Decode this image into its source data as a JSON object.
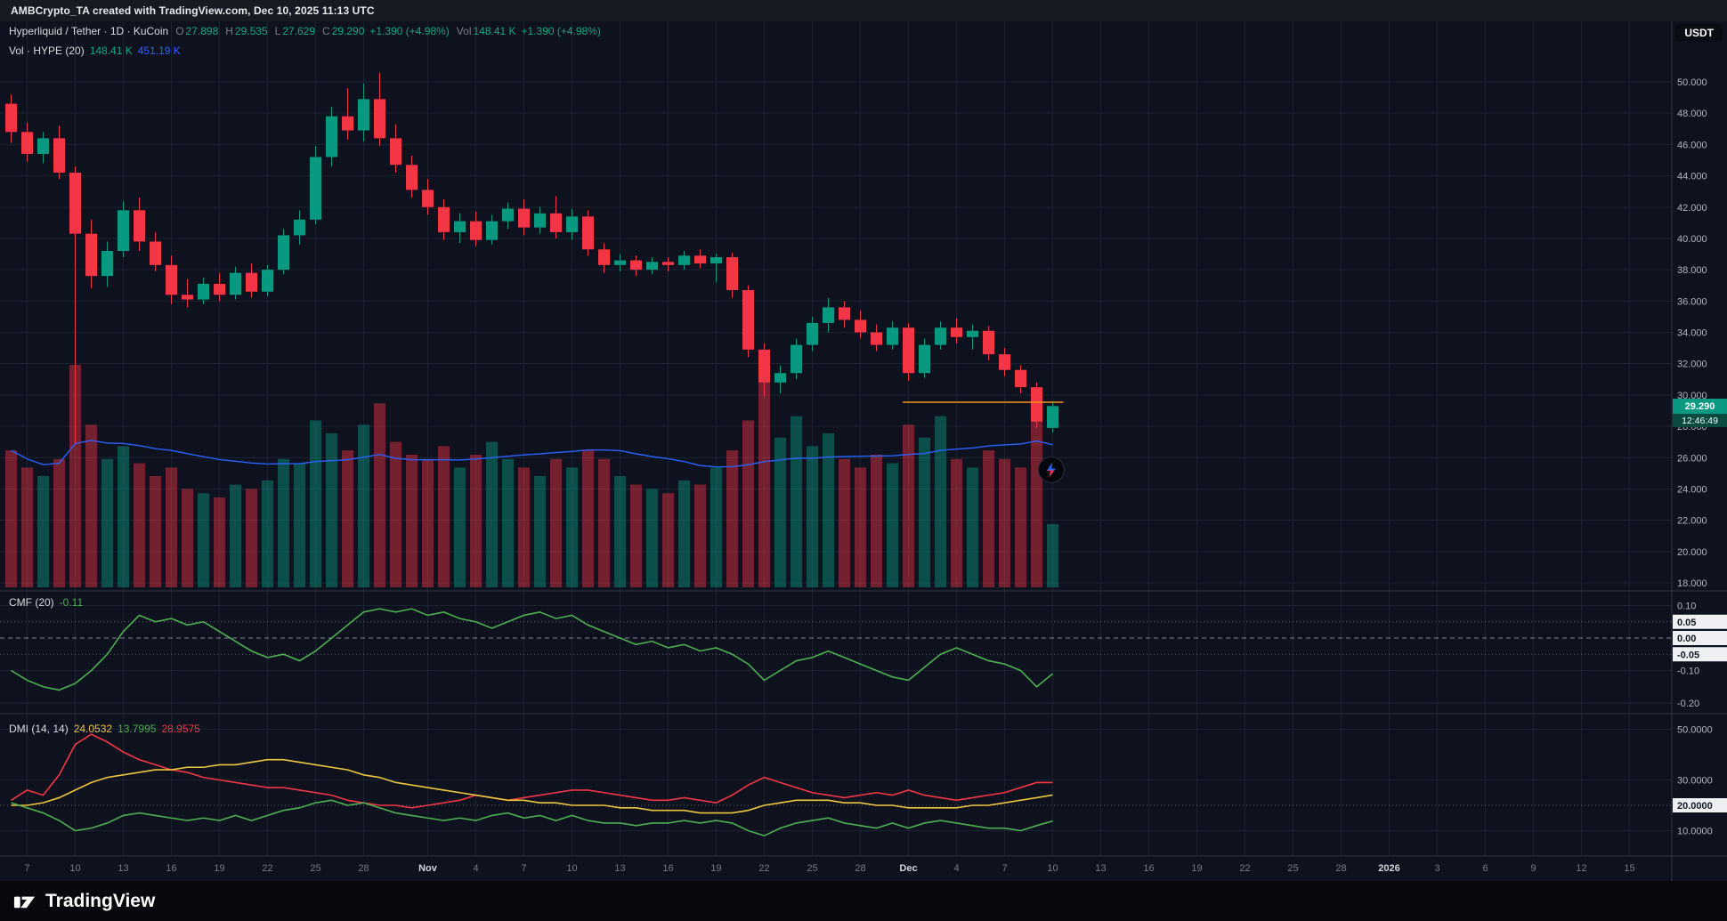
{
  "meta": {
    "attribution": "AMBCrypto_TA created with TradingView.com, Dec 10, 2025 11:13 UTC"
  },
  "header": {
    "symbol": {
      "title": "Hyperliquid / Tether · 1D · KuCoin",
      "o_label": "O",
      "o": "27.898",
      "h_label": "H",
      "h": "29.535",
      "l_label": "L",
      "l": "27.629",
      "c_label": "C",
      "c": "29.290",
      "change": "+1.390 (+4.98%)",
      "vol_label": "Vol",
      "vol": "148.41 K",
      "vol_change": "+1.390 (+4.98%)"
    },
    "indicator_vol": {
      "label": "Vol · HYPE (20)",
      "value": "148.41 K",
      "ma": "451.19 K"
    },
    "currency_badge": "USDT"
  },
  "price_scale": {
    "current": {
      "label": "29.290",
      "countdown": "12:46:49"
    }
  },
  "panes": {
    "cmf": {
      "label": "CMF (20)",
      "value": "-0.11"
    },
    "dmi": {
      "label": "DMI (14, 14)",
      "adx": "24.0532",
      "plus": "13.7995",
      "minus": "28.9575"
    }
  },
  "axes": {
    "price": {
      "ticks": [
        {
          "label": "50.000",
          "v": 50
        },
        {
          "label": "48.000",
          "v": 48
        },
        {
          "label": "46.000",
          "v": 46
        },
        {
          "label": "44.000",
          "v": 44
        },
        {
          "label": "42.000",
          "v": 42
        },
        {
          "label": "40.000",
          "v": 40
        },
        {
          "label": "38.000",
          "v": 38
        },
        {
          "label": "36.000",
          "v": 36
        },
        {
          "label": "34.000",
          "v": 34
        },
        {
          "label": "32.000",
          "v": 32
        },
        {
          "label": "30.000",
          "v": 30
        },
        {
          "label": "28.000",
          "v": 28
        },
        {
          "label": "26.000",
          "v": 26
        },
        {
          "label": "24.000",
          "v": 24
        },
        {
          "label": "22.000",
          "v": 22
        },
        {
          "label": "20.000",
          "v": 20
        },
        {
          "label": "18.000",
          "v": 18
        }
      ]
    },
    "cmf": {
      "ticks": [
        {
          "label": "0.10",
          "v": 0.1,
          "badge": false
        },
        {
          "label": "0.05",
          "v": 0.05,
          "badge": true
        },
        {
          "label": "0.00",
          "v": 0.0,
          "badge": true
        },
        {
          "label": "-0.05",
          "v": -0.05,
          "badge": true
        },
        {
          "label": "-0.10",
          "v": -0.1,
          "badge": false
        },
        {
          "label": "-0.20",
          "v": -0.2,
          "badge": false
        }
      ]
    },
    "dmi": {
      "ticks": [
        {
          "label": "50.0000",
          "v": 50,
          "badge": false
        },
        {
          "label": "30.0000",
          "v": 30,
          "badge": false
        },
        {
          "label": "20.0000",
          "v": 20,
          "badge": true
        },
        {
          "label": "10.0000",
          "v": 10,
          "badge": false
        }
      ]
    },
    "time": {
      "labels": [
        {
          "t": "7",
          "i": 1
        },
        {
          "t": "10",
          "i": 4
        },
        {
          "t": "13",
          "i": 7
        },
        {
          "t": "16",
          "i": 10
        },
        {
          "t": "19",
          "i": 13
        },
        {
          "t": "22",
          "i": 16
        },
        {
          "t": "25",
          "i": 19
        },
        {
          "t": "28",
          "i": 22
        },
        {
          "t": "Nov",
          "i": 26,
          "major": true
        },
        {
          "t": "4",
          "i": 29
        },
        {
          "t": "7",
          "i": 32
        },
        {
          "t": "10",
          "i": 35
        },
        {
          "t": "13",
          "i": 38
        },
        {
          "t": "16",
          "i": 41
        },
        {
          "t": "19",
          "i": 44
        },
        {
          "t": "22",
          "i": 47
        },
        {
          "t": "25",
          "i": 50
        },
        {
          "t": "28",
          "i": 53
        },
        {
          "t": "Dec",
          "i": 56,
          "major": true
        },
        {
          "t": "4",
          "i": 59
        },
        {
          "t": "7",
          "i": 62
        },
        {
          "t": "10",
          "i": 65
        },
        {
          "t": "13",
          "i": 68
        },
        {
          "t": "16",
          "i": 71
        },
        {
          "t": "19",
          "i": 74
        },
        {
          "t": "22",
          "i": 77
        },
        {
          "t": "25",
          "i": 80
        },
        {
          "t": "28",
          "i": 83
        },
        {
          "t": "2026",
          "i": 86,
          "major": true
        },
        {
          "t": "3",
          "i": 89
        },
        {
          "t": "6",
          "i": 92
        },
        {
          "t": "9",
          "i": 95
        },
        {
          "t": "12",
          "i": 98
        },
        {
          "t": "15",
          "i": 101
        }
      ]
    }
  },
  "footer": {
    "brand": "TradingView"
  },
  "colors": {
    "bg": "#0e121e",
    "up": "#089981",
    "down": "#f23645",
    "vol_up": "rgba(8,153,129,0.45)",
    "vol_down": "rgba(242,54,69,0.45)",
    "vol_ma": "#2962ff",
    "cmf_line": "#4caf50",
    "adx": "#edc53f",
    "plus_di": "#4caf50",
    "minus_di": "#f23645",
    "price_line": "#f7931a",
    "grid": "#1b2231",
    "separator": "#2f3442",
    "axis_text": "#b2b5be",
    "dim_text": "#787b86",
    "badge_bg": "#eef0f3",
    "last_price_bg": "#089981"
  },
  "chart_data": {
    "type": "candlestick",
    "title": "Hyperliquid / Tether 1D KuCoin",
    "price_range": [
      18,
      50
    ],
    "cmf_range": [
      -0.22,
      0.12
    ],
    "dmi_range": [
      0,
      50
    ],
    "dates": [
      "Oct 6",
      "Oct 7",
      "Oct 8",
      "Oct 9",
      "Oct 10",
      "Oct 11",
      "Oct 12",
      "Oct 13",
      "Oct 14",
      "Oct 15",
      "Oct 16",
      "Oct 17",
      "Oct 18",
      "Oct 19",
      "Oct 20",
      "Oct 21",
      "Oct 22",
      "Oct 23",
      "Oct 24",
      "Oct 25",
      "Oct 26",
      "Oct 27",
      "Oct 28",
      "Oct 29",
      "Oct 30",
      "Oct 31",
      "Nov 1",
      "Nov 2",
      "Nov 3",
      "Nov 4",
      "Nov 5",
      "Nov 6",
      "Nov 7",
      "Nov 8",
      "Nov 9",
      "Nov 10",
      "Nov 11",
      "Nov 12",
      "Nov 13",
      "Nov 14",
      "Nov 15",
      "Nov 16",
      "Nov 17",
      "Nov 18",
      "Nov 19",
      "Nov 20",
      "Nov 21",
      "Nov 22",
      "Nov 23",
      "Nov 24",
      "Nov 25",
      "Nov 26",
      "Nov 27",
      "Nov 28",
      "Nov 29",
      "Nov 30",
      "Dec 1",
      "Dec 2",
      "Dec 3",
      "Dec 4",
      "Dec 5",
      "Dec 6",
      "Dec 7",
      "Dec 8",
      "Dec 9",
      "Dec 10"
    ],
    "candles": [
      [
        48.6,
        49.2,
        46.1,
        46.8
      ],
      [
        46.8,
        47.4,
        44.9,
        45.4
      ],
      [
        45.4,
        46.8,
        44.8,
        46.4
      ],
      [
        46.4,
        47.2,
        43.8,
        44.2
      ],
      [
        44.2,
        44.6,
        26.9,
        40.3
      ],
      [
        40.3,
        41.2,
        36.8,
        37.6
      ],
      [
        37.6,
        39.8,
        36.9,
        39.2
      ],
      [
        39.2,
        42.4,
        38.8,
        41.8
      ],
      [
        41.8,
        42.6,
        39.2,
        39.8
      ],
      [
        39.8,
        40.4,
        37.9,
        38.3
      ],
      [
        38.3,
        38.9,
        35.8,
        36.4
      ],
      [
        36.4,
        37.4,
        35.6,
        36.1
      ],
      [
        36.1,
        37.5,
        35.8,
        37.1
      ],
      [
        37.1,
        37.8,
        36.0,
        36.4
      ],
      [
        36.4,
        38.2,
        36.1,
        37.8
      ],
      [
        37.8,
        38.4,
        36.2,
        36.6
      ],
      [
        36.6,
        38.3,
        36.3,
        38.0
      ],
      [
        38.0,
        40.6,
        37.7,
        40.2
      ],
      [
        40.2,
        41.8,
        39.6,
        41.2
      ],
      [
        41.2,
        45.9,
        40.9,
        45.2
      ],
      [
        45.2,
        48.4,
        44.6,
        47.8
      ],
      [
        47.8,
        49.6,
        46.3,
        46.9
      ],
      [
        46.9,
        49.9,
        46.2,
        48.9
      ],
      [
        48.9,
        50.6,
        45.9,
        46.4
      ],
      [
        46.4,
        47.3,
        44.2,
        44.7
      ],
      [
        44.7,
        45.3,
        42.6,
        43.1
      ],
      [
        43.1,
        43.8,
        41.5,
        42.0
      ],
      [
        42.0,
        42.5,
        39.9,
        40.4
      ],
      [
        40.4,
        41.6,
        39.7,
        41.1
      ],
      [
        41.1,
        41.7,
        39.5,
        39.9
      ],
      [
        39.9,
        41.5,
        39.6,
        41.1
      ],
      [
        41.1,
        42.3,
        40.6,
        41.9
      ],
      [
        41.9,
        42.5,
        40.2,
        40.7
      ],
      [
        40.7,
        42.0,
        40.3,
        41.6
      ],
      [
        41.6,
        42.7,
        40.0,
        40.4
      ],
      [
        40.4,
        41.9,
        39.9,
        41.4
      ],
      [
        41.4,
        41.8,
        38.9,
        39.3
      ],
      [
        39.3,
        39.7,
        37.8,
        38.3
      ],
      [
        38.3,
        39.0,
        37.9,
        38.6
      ],
      [
        38.6,
        38.9,
        37.6,
        38.0
      ],
      [
        38.0,
        38.8,
        37.7,
        38.5
      ],
      [
        38.5,
        38.8,
        37.9,
        38.3
      ],
      [
        38.3,
        39.2,
        38.0,
        38.9
      ],
      [
        38.9,
        39.3,
        38.1,
        38.4
      ],
      [
        38.4,
        39.0,
        37.2,
        38.8
      ],
      [
        38.8,
        39.1,
        36.2,
        36.7
      ],
      [
        36.7,
        37.0,
        32.4,
        32.9
      ],
      [
        32.9,
        33.3,
        29.9,
        30.8
      ],
      [
        30.8,
        31.9,
        30.1,
        31.4
      ],
      [
        31.4,
        33.6,
        31.0,
        33.2
      ],
      [
        33.2,
        35.0,
        32.8,
        34.6
      ],
      [
        34.6,
        36.2,
        34.0,
        35.6
      ],
      [
        35.6,
        36.0,
        34.3,
        34.8
      ],
      [
        34.8,
        35.4,
        33.6,
        34.0
      ],
      [
        34.0,
        34.5,
        32.8,
        33.2
      ],
      [
        33.2,
        34.7,
        32.9,
        34.3
      ],
      [
        34.3,
        34.6,
        30.9,
        31.4
      ],
      [
        31.4,
        33.6,
        31.1,
        33.2
      ],
      [
        33.2,
        34.7,
        32.9,
        34.3
      ],
      [
        34.3,
        34.9,
        33.3,
        33.7
      ],
      [
        33.7,
        34.5,
        32.9,
        34.1
      ],
      [
        34.1,
        34.4,
        32.2,
        32.6
      ],
      [
        32.6,
        33.0,
        31.2,
        31.6
      ],
      [
        31.6,
        31.9,
        30.1,
        30.5
      ],
      [
        30.5,
        30.8,
        27.9,
        28.3
      ],
      [
        27.898,
        29.535,
        27.629,
        29.29
      ]
    ],
    "volumes": [
      320,
      280,
      260,
      300,
      520,
      380,
      300,
      330,
      290,
      260,
      280,
      230,
      220,
      210,
      240,
      230,
      250,
      300,
      290,
      390,
      360,
      320,
      380,
      430,
      340,
      310,
      300,
      330,
      280,
      310,
      340,
      300,
      280,
      260,
      300,
      280,
      320,
      300,
      260,
      240,
      230,
      220,
      250,
      240,
      280,
      320,
      390,
      480,
      350,
      400,
      330,
      360,
      300,
      280,
      310,
      290,
      380,
      350,
      400,
      300,
      280,
      320,
      300,
      280,
      420,
      148
    ],
    "cmf": [
      -0.1,
      -0.13,
      -0.15,
      -0.16,
      -0.14,
      -0.1,
      -0.05,
      0.02,
      0.07,
      0.05,
      0.06,
      0.04,
      0.05,
      0.02,
      -0.01,
      -0.04,
      -0.06,
      -0.05,
      -0.07,
      -0.04,
      0.0,
      0.04,
      0.08,
      0.09,
      0.08,
      0.09,
      0.07,
      0.08,
      0.06,
      0.05,
      0.03,
      0.05,
      0.07,
      0.08,
      0.06,
      0.07,
      0.04,
      0.02,
      0.0,
      -0.02,
      -0.01,
      -0.03,
      -0.02,
      -0.04,
      -0.03,
      -0.05,
      -0.08,
      -0.13,
      -0.1,
      -0.07,
      -0.06,
      -0.04,
      -0.06,
      -0.08,
      -0.1,
      -0.12,
      -0.13,
      -0.09,
      -0.05,
      -0.03,
      -0.05,
      -0.07,
      -0.08,
      -0.1,
      -0.15,
      -0.11
    ],
    "dmi": {
      "adx": [
        20,
        20,
        21,
        23,
        26,
        29,
        31,
        32,
        33,
        34,
        34,
        35,
        35,
        36,
        36,
        37,
        38,
        38,
        37,
        36,
        35,
        34,
        32,
        31,
        29,
        28,
        27,
        26,
        25,
        24,
        23,
        22,
        22,
        21,
        21,
        20,
        20,
        20,
        19,
        19,
        18,
        18,
        18,
        17,
        17,
        17,
        18,
        20,
        21,
        22,
        22,
        22,
        21,
        21,
        20,
        20,
        19,
        19,
        19,
        19,
        20,
        20,
        21,
        22,
        23,
        24.05
      ],
      "plus": [
        21,
        19,
        17,
        14,
        10,
        11,
        13,
        16,
        17,
        16,
        15,
        14,
        15,
        14,
        16,
        14,
        16,
        18,
        19,
        21,
        22,
        20,
        21,
        19,
        17,
        16,
        15,
        14,
        15,
        14,
        16,
        17,
        15,
        16,
        14,
        16,
        14,
        13,
        13,
        12,
        13,
        13,
        14,
        13,
        14,
        13,
        10,
        8,
        11,
        13,
        14,
        15,
        13,
        12,
        11,
        13,
        11,
        13,
        14,
        13,
        12,
        11,
        11,
        10,
        12,
        13.8
      ],
      "minus": [
        22,
        26,
        24,
        32,
        44,
        48,
        45,
        41,
        38,
        36,
        34,
        33,
        31,
        30,
        29,
        28,
        27,
        27,
        26,
        25,
        24,
        22,
        21,
        20,
        20,
        19,
        20,
        21,
        22,
        24,
        23,
        22,
        23,
        24,
        25,
        26,
        26,
        25,
        24,
        23,
        22,
        22,
        23,
        22,
        21,
        24,
        28,
        31,
        29,
        27,
        25,
        24,
        23,
        24,
        25,
        24,
        26,
        24,
        23,
        22,
        23,
        24,
        25,
        27,
        29,
        28.96
      ]
    },
    "price_line": {
      "price": 29.54,
      "from": 56,
      "to": 65
    }
  }
}
